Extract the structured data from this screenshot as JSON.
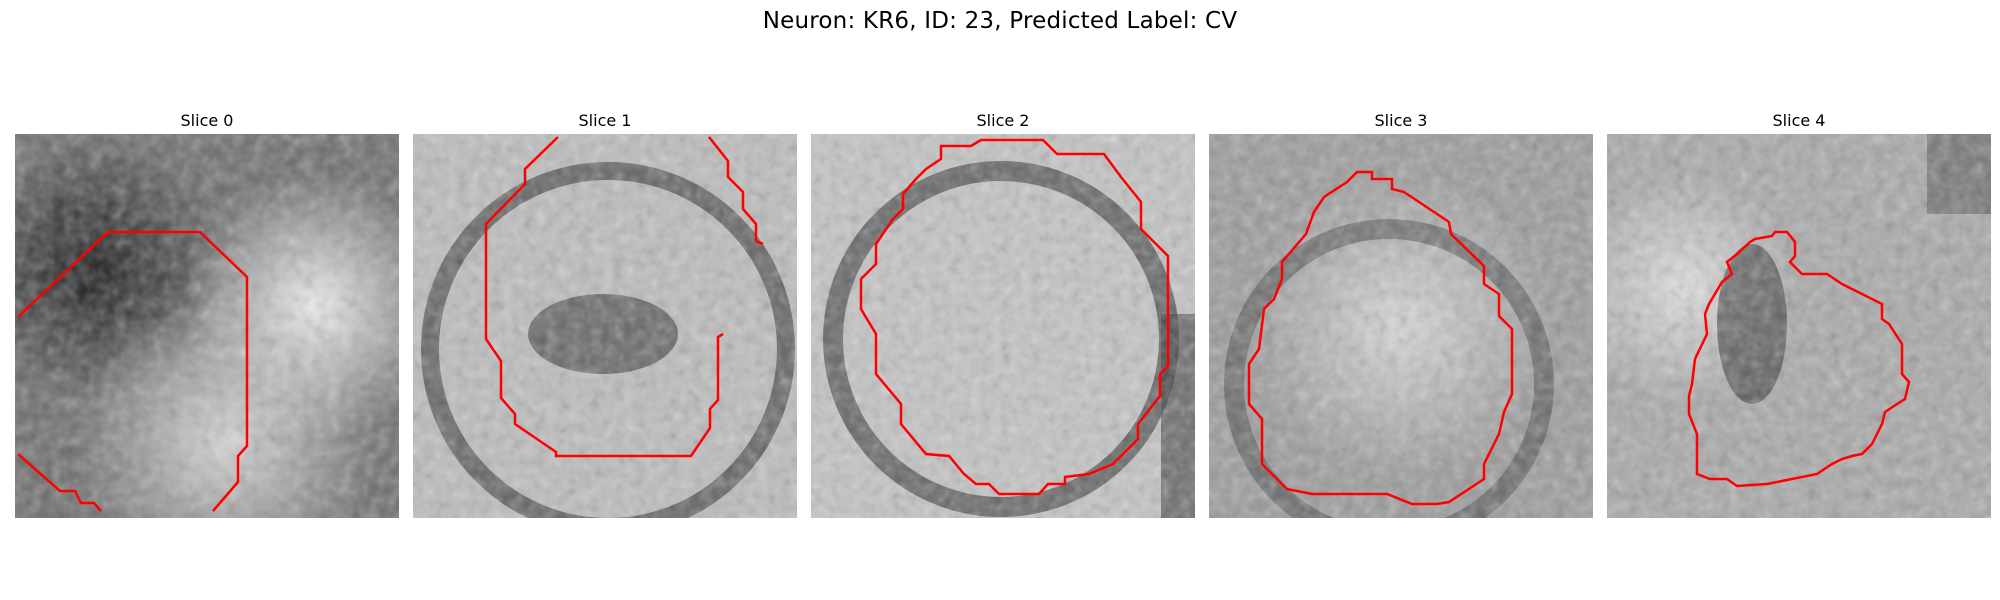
{
  "figure": {
    "title": "Neuron: KR6, ID: 23, Predicted Label: CV"
  },
  "contour_color": "#ff0000",
  "panels": [
    {
      "title": "Slice 0"
    },
    {
      "title": "Slice 1"
    },
    {
      "title": "Slice 2"
    },
    {
      "title": "Slice 3"
    },
    {
      "title": "Slice 4"
    }
  ]
}
